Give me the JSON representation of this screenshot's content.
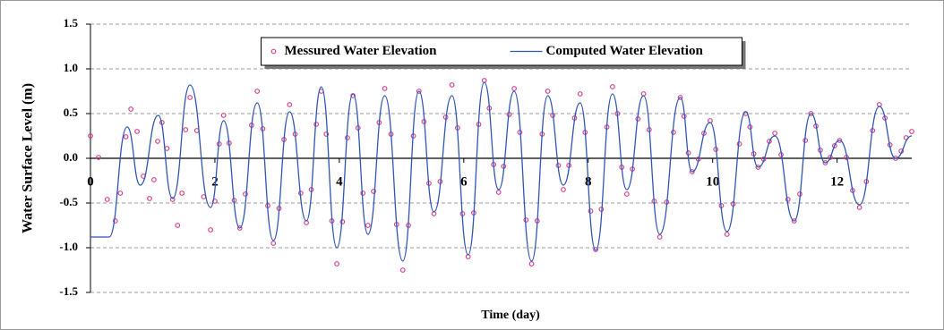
{
  "chart_data": {
    "type": "line",
    "xlabel": "Time (day)",
    "ylabel": "Water Surface Level (m)",
    "xlim": [
      0,
      13.2
    ],
    "xticks": [
      0,
      2,
      4,
      6,
      8,
      10,
      12
    ],
    "ylim": [
      -1.5,
      1.5
    ],
    "yticks": [
      1.5,
      {
        "value": 1,
        "label": "1.0"
      },
      0.5,
      {
        "value": 0,
        "label": "0.0"
      },
      -0.5,
      {
        "value": -1,
        "label": "-1.0"
      },
      -1.5
    ],
    "grid": true,
    "legend": "top",
    "series": [
      {
        "name": "Messured Water Elevation",
        "type": "scatter",
        "color": "#d6418f",
        "x": [
          0.0,
          0.13,
          0.27,
          0.4,
          0.48,
          0.57,
          0.65,
          0.75,
          0.85,
          0.95,
          1.02,
          1.08,
          1.15,
          1.23,
          1.32,
          1.4,
          1.47,
          1.53,
          1.6,
          1.71,
          1.82,
          1.93,
          2.0,
          2.07,
          2.14,
          2.23,
          2.31,
          2.4,
          2.49,
          2.59,
          2.68,
          2.77,
          2.85,
          2.94,
          3.03,
          3.11,
          3.2,
          3.29,
          3.38,
          3.47,
          3.55,
          3.63,
          3.71,
          3.79,
          3.88,
          3.96,
          4.05,
          4.13,
          4.22,
          4.3,
          4.38,
          4.46,
          4.55,
          4.64,
          4.73,
          4.83,
          4.92,
          5.02,
          5.11,
          5.19,
          5.28,
          5.36,
          5.44,
          5.52,
          5.62,
          5.71,
          5.81,
          5.9,
          5.98,
          6.07,
          6.16,
          6.24,
          6.33,
          6.41,
          6.48,
          6.56,
          6.64,
          6.73,
          6.81,
          6.9,
          7.0,
          7.09,
          7.18,
          7.26,
          7.35,
          7.43,
          7.52,
          7.6,
          7.69,
          7.78,
          7.87,
          7.95,
          8.04,
          8.12,
          8.21,
          8.3,
          8.39,
          8.47,
          8.54,
          8.62,
          8.71,
          8.8,
          8.89,
          8.98,
          9.06,
          9.15,
          9.26,
          9.37,
          9.48,
          9.54,
          9.61,
          9.67,
          9.77,
          9.86,
          9.96,
          10.05,
          10.14,
          10.23,
          10.33,
          10.43,
          10.53,
          10.6,
          10.66,
          10.73,
          10.82,
          10.91,
          11.0,
          11.1,
          11.21,
          11.31,
          11.4,
          11.49,
          11.58,
          11.66,
          11.73,
          11.81,
          11.89,
          11.96,
          12.04,
          12.15,
          12.25,
          12.36,
          12.47,
          12.57,
          12.68,
          12.77,
          12.85,
          12.94,
          13.03,
          13.11,
          13.2
        ],
        "values": [
          0.25,
          0.01,
          -0.46,
          -0.7,
          -0.39,
          0.24,
          0.55,
          0.3,
          -0.2,
          -0.45,
          -0.24,
          0.19,
          0.4,
          0.11,
          -0.46,
          -0.75,
          -0.39,
          0.32,
          0.68,
          0.31,
          -0.43,
          -0.8,
          -0.48,
          0.16,
          0.48,
          0.17,
          -0.47,
          -0.78,
          -0.4,
          0.37,
          0.75,
          0.33,
          -0.53,
          -0.95,
          -0.56,
          0.21,
          0.6,
          0.27,
          -0.39,
          -0.72,
          -0.35,
          0.38,
          0.75,
          0.27,
          -0.7,
          -1.18,
          -0.71,
          0.23,
          0.7,
          0.34,
          -0.39,
          -0.75,
          -0.37,
          0.4,
          0.78,
          0.27,
          -0.74,
          -1.25,
          -0.75,
          0.25,
          0.75,
          0.41,
          -0.28,
          -0.62,
          -0.26,
          0.46,
          0.82,
          0.34,
          -0.62,
          -1.1,
          -0.61,
          0.38,
          0.87,
          0.56,
          -0.07,
          -0.38,
          -0.09,
          0.49,
          0.78,
          0.29,
          -0.69,
          -1.18,
          -0.7,
          0.27,
          0.75,
          0.48,
          -0.08,
          -0.35,
          -0.08,
          0.45,
          0.72,
          0.29,
          -0.59,
          -1.02,
          -0.57,
          0.35,
          0.8,
          0.5,
          -0.1,
          -0.4,
          -0.12,
          0.44,
          0.72,
          0.32,
          -0.48,
          -0.88,
          -0.49,
          0.29,
          0.68,
          0.47,
          0.06,
          -0.15,
          -0.01,
          0.28,
          0.42,
          0.1,
          -0.53,
          -0.85,
          -0.51,
          0.16,
          0.5,
          0.35,
          0.05,
          -0.1,
          -0.01,
          0.19,
          0.28,
          0.04,
          -0.46,
          -0.7,
          -0.4,
          0.2,
          0.5,
          0.36,
          0.09,
          -0.05,
          0.01,
          0.14,
          0.2,
          0.01,
          -0.36,
          -0.55,
          -0.26,
          0.31,
          0.6,
          0.45,
          0.15,
          0,
          0.08,
          0.23,
          0.3
        ]
      },
      {
        "name": "Computed Water Elevation",
        "type": "line",
        "color": "#2f55b5",
        "x": [
          0,
          0.3,
          0.59,
          0.8,
          1.09,
          1.32,
          1.6,
          1.93,
          2.14,
          2.4,
          2.68,
          2.94,
          3.2,
          3.47,
          3.71,
          3.96,
          4.22,
          4.46,
          4.73,
          5.02,
          5.28,
          5.52,
          5.81,
          6.07,
          6.33,
          6.56,
          6.81,
          7.09,
          7.35,
          7.6,
          7.87,
          8.12,
          8.39,
          8.62,
          8.89,
          9.15,
          9.48,
          9.67,
          9.96,
          10.23,
          10.53,
          10.73,
          11.0,
          11.31,
          11.58,
          11.81,
          12.04,
          12.36,
          12.68,
          12.94,
          13.2
        ],
        "values": [
          -0.88,
          -0.88,
          0.35,
          -0.3,
          0.48,
          -0.45,
          0.82,
          -0.55,
          0.42,
          -0.78,
          0.62,
          -0.92,
          0.52,
          -0.7,
          0.8,
          -1.0,
          0.72,
          -0.85,
          0.7,
          -1.15,
          0.75,
          -0.6,
          0.7,
          -1.08,
          0.85,
          -0.35,
          0.75,
          -1.15,
          0.7,
          -0.3,
          0.62,
          -1.03,
          0.72,
          -0.35,
          0.7,
          -0.85,
          0.68,
          -0.15,
          0.4,
          -0.82,
          0.52,
          -0.1,
          0.25,
          -0.7,
          0.5,
          -0.05,
          0.2,
          -0.52,
          0.58,
          0.0,
          0.25
        ]
      }
    ]
  }
}
